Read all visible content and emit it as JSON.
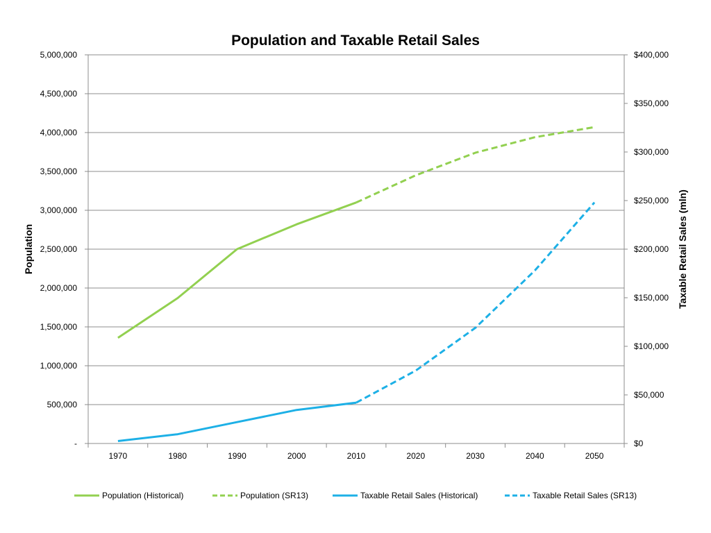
{
  "chart_data": {
    "type": "line",
    "title": "Population and Taxable Retail Sales",
    "x": [
      1970,
      1980,
      1990,
      2000,
      2010,
      2020,
      2030,
      2040,
      2050
    ],
    "x_tick_labels": [
      "1970",
      "1980",
      "1990",
      "2000",
      "2010",
      "2020",
      "2030",
      "2040",
      "2050"
    ],
    "y_left": {
      "label": "Population",
      "lim": [
        0,
        5000000
      ],
      "tick_labels": [
        "-",
        "500,000",
        "1,000,000",
        "1,500,000",
        "2,000,000",
        "2,500,000",
        "3,000,000",
        "3,500,000",
        "4,000,000",
        "4,500,000",
        "5,000,000"
      ]
    },
    "y_right": {
      "label": "Taxable Retail Sales (mln)",
      "lim": [
        0,
        400000
      ],
      "tick_labels": [
        "$0",
        "$50,000",
        "$100,000",
        "$150,000",
        "$200,000",
        "$250,000",
        "$300,000",
        "$350,000",
        "$400,000"
      ]
    },
    "grid": true,
    "legend_position": "bottom",
    "series": [
      {
        "name": "Population (Historical)",
        "axis": "left",
        "style": "solid",
        "color": "#92D050",
        "x": [
          1970,
          1980,
          1990,
          2000,
          2010
        ],
        "values": [
          1360000,
          1870000,
          2500000,
          2820000,
          3100000
        ]
      },
      {
        "name": "Population (SR13)",
        "axis": "left",
        "style": "dashed",
        "color": "#92D050",
        "x": [
          2010,
          2020,
          2030,
          2040,
          2050
        ],
        "values": [
          3100000,
          3450000,
          3740000,
          3940000,
          4070000
        ]
      },
      {
        "name": "Taxable Retail Sales (Historical)",
        "axis": "right",
        "style": "solid",
        "color": "#1DB0E6",
        "x": [
          1970,
          1980,
          1990,
          2000,
          2010
        ],
        "values": [
          2500,
          9500,
          22000,
          34500,
          42000
        ]
      },
      {
        "name": "Taxable Retail Sales (SR13)",
        "axis": "right",
        "style": "dashed",
        "color": "#1DB0E6",
        "x": [
          2010,
          2020,
          2030,
          2040,
          2050
        ],
        "values": [
          42000,
          75000,
          119000,
          178000,
          248000
        ]
      }
    ]
  }
}
